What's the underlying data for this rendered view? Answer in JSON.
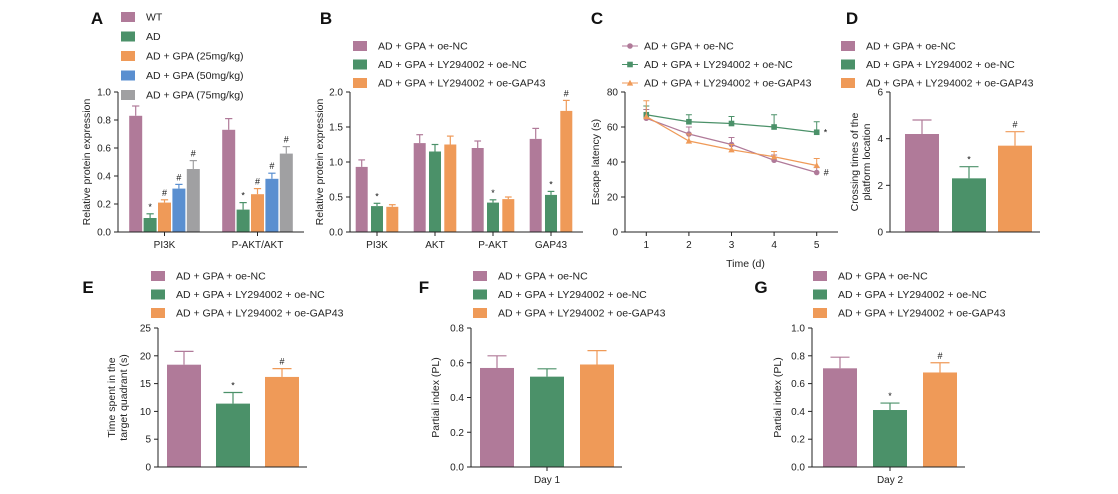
{
  "colors": {
    "wt": "#b07a99",
    "ad": "#4b9169",
    "gpa25": "#ef9a58",
    "gpa50": "#5a8fd0",
    "gpa75": "#a0a0a2",
    "nc": "#b07a99",
    "ly": "#4b9169",
    "gap": "#ef9a58",
    "axis": "#222222"
  },
  "chart_data": [
    {
      "id": "A",
      "panel_label": "A",
      "type": "bar",
      "categories": [
        "PI3K",
        "P-AKT/AKT"
      ],
      "ylabel": "Relative protein expression",
      "ylim": [
        0,
        1.0
      ],
      "yticks": [
        "0.0",
        "0.2",
        "0.4",
        "0.6",
        "0.8",
        "1.0"
      ],
      "series": [
        {
          "name": "WT",
          "color_key": "wt",
          "values": [
            0.83,
            0.73
          ],
          "errors": [
            0.07,
            0.08
          ],
          "marks": [
            "",
            ""
          ]
        },
        {
          "name": "AD",
          "color_key": "ad",
          "values": [
            0.1,
            0.16
          ],
          "errors": [
            0.03,
            0.05
          ],
          "marks": [
            "*",
            "*"
          ]
        },
        {
          "name": "AD + GPA (25mg/kg)",
          "color_key": "gpa25",
          "values": [
            0.21,
            0.27
          ],
          "errors": [
            0.02,
            0.04
          ],
          "marks": [
            "#",
            "#"
          ]
        },
        {
          "name": "AD + GPA (50mg/kg)",
          "color_key": "gpa50",
          "values": [
            0.31,
            0.38
          ],
          "errors": [
            0.03,
            0.04
          ],
          "marks": [
            "#",
            "#"
          ]
        },
        {
          "name": "AD + GPA (75mg/kg)",
          "color_key": "gpa75",
          "values": [
            0.45,
            0.56
          ],
          "errors": [
            0.06,
            0.05
          ],
          "marks": [
            "#",
            "#"
          ]
        }
      ]
    },
    {
      "id": "B",
      "panel_label": "B",
      "type": "bar",
      "categories": [
        "PI3K",
        "AKT",
        "P-AKT",
        "GAP43"
      ],
      "ylabel": "Relative protein expression",
      "ylim": [
        0,
        2.0
      ],
      "yticks": [
        "0.0",
        "0.5",
        "1.0",
        "1.5",
        "2.0"
      ],
      "series": [
        {
          "name": "AD + GPA + oe-NC",
          "color_key": "nc",
          "values": [
            0.93,
            1.27,
            1.2,
            1.33
          ],
          "errors": [
            0.1,
            0.12,
            0.1,
            0.15
          ],
          "marks": [
            "",
            "",
            "",
            ""
          ]
        },
        {
          "name": "AD + GPA + LY294002 + oe-NC",
          "color_key": "ly",
          "values": [
            0.37,
            1.15,
            0.42,
            0.53
          ],
          "errors": [
            0.04,
            0.1,
            0.04,
            0.05
          ],
          "marks": [
            "*",
            "",
            "*",
            "*"
          ]
        },
        {
          "name": "AD + GPA + LY294002 + oe-GAP43",
          "color_key": "gap",
          "values": [
            0.36,
            1.25,
            0.47,
            1.73
          ],
          "errors": [
            0.03,
            0.12,
            0.03,
            0.15
          ],
          "marks": [
            "",
            "",
            "",
            "#"
          ]
        }
      ]
    },
    {
      "id": "C",
      "panel_label": "C",
      "type": "line",
      "x": [
        1,
        2,
        3,
        4,
        5
      ],
      "xlabel": "Time (d)",
      "ylabel": "Escape latency (s)",
      "xlim": [
        0.5,
        5.5
      ],
      "ylim": [
        0,
        80
      ],
      "xticks": [
        "1",
        "2",
        "3",
        "4",
        "5"
      ],
      "yticks": [
        "0",
        "20",
        "40",
        "60",
        "80"
      ],
      "series": [
        {
          "name": "AD + GPA + oe-NC",
          "color_key": "nc",
          "marker": "circle",
          "values": [
            65,
            56,
            50,
            41,
            34
          ],
          "errors": [
            5,
            4,
            4,
            3,
            3
          ],
          "end_mark": "#"
        },
        {
          "name": "AD + GPA + LY294002 + oe-NC",
          "color_key": "ly",
          "marker": "square",
          "values": [
            67,
            63,
            62,
            60,
            57
          ],
          "errors": [
            5,
            4,
            4,
            7,
            6
          ],
          "end_mark": "*"
        },
        {
          "name": "AD + GPA + LY294002 + oe-GAP43",
          "color_key": "gap",
          "marker": "triangle",
          "values": [
            66,
            52,
            47,
            43,
            38
          ],
          "errors": [
            9,
            4,
            3,
            3,
            4
          ],
          "end_mark": ""
        }
      ]
    },
    {
      "id": "D",
      "panel_label": "D",
      "type": "bar",
      "categories": [
        ""
      ],
      "ylabel": "Crossing times of the platform location",
      "ylim": [
        0,
        6
      ],
      "yticks": [
        "0",
        "2",
        "4",
        "6"
      ],
      "series": [
        {
          "name": "AD + GPA + oe-NC",
          "color_key": "nc",
          "values": [
            4.2
          ],
          "errors": [
            0.6
          ],
          "marks": [
            ""
          ]
        },
        {
          "name": "AD + GPA + LY294002 + oe-NC",
          "color_key": "ly",
          "values": [
            2.3
          ],
          "errors": [
            0.5
          ],
          "marks": [
            "*"
          ]
        },
        {
          "name": "AD + GPA + LY294002 + oe-GAP43",
          "color_key": "gap",
          "values": [
            3.7
          ],
          "errors": [
            0.6
          ],
          "marks": [
            "#"
          ]
        }
      ]
    },
    {
      "id": "E",
      "panel_label": "E",
      "type": "bar",
      "categories": [
        ""
      ],
      "ylabel": "Time spent in the target quadrant (s)",
      "ylim": [
        0,
        25
      ],
      "yticks": [
        "0",
        "5",
        "10",
        "15",
        "20",
        "25"
      ],
      "series": [
        {
          "name": "AD + GPA + oe-NC",
          "color_key": "nc",
          "values": [
            18.4
          ],
          "errors": [
            2.4
          ],
          "marks": [
            ""
          ]
        },
        {
          "name": "AD + GPA + LY294002 + oe-NC",
          "color_key": "ly",
          "values": [
            11.4
          ],
          "errors": [
            2.0
          ],
          "marks": [
            "*"
          ]
        },
        {
          "name": "AD + GPA + LY294002 + oe-GAP43",
          "color_key": "gap",
          "values": [
            16.2
          ],
          "errors": [
            1.5
          ],
          "marks": [
            "#"
          ]
        }
      ]
    },
    {
      "id": "F",
      "panel_label": "F",
      "type": "bar",
      "categories": [
        "Day 1"
      ],
      "ylabel": "Partial index (PL)",
      "ylim": [
        0,
        0.8
      ],
      "yticks": [
        "0.0",
        "0.2",
        "0.4",
        "0.6",
        "0.8"
      ],
      "series": [
        {
          "name": "AD + GPA + oe-NC",
          "color_key": "nc",
          "values": [
            0.57
          ],
          "errors": [
            0.07
          ],
          "marks": [
            ""
          ]
        },
        {
          "name": "AD + GPA + LY294002 + oe-NC",
          "color_key": "ly",
          "values": [
            0.52
          ],
          "errors": [
            0.045
          ],
          "marks": [
            ""
          ]
        },
        {
          "name": "AD + GPA + LY294002 + oe-GAP43",
          "color_key": "gap",
          "values": [
            0.59
          ],
          "errors": [
            0.08
          ],
          "marks": [
            ""
          ]
        }
      ]
    },
    {
      "id": "G",
      "panel_label": "G",
      "type": "bar",
      "categories": [
        "Day 2"
      ],
      "ylabel": "Partial index (PL)",
      "ylim": [
        0,
        1.0
      ],
      "yticks": [
        "0.0",
        "0.2",
        "0.4",
        "0.6",
        "0.8",
        "1.0"
      ],
      "series": [
        {
          "name": "AD + GPA + oe-NC",
          "color_key": "nc",
          "values": [
            0.71
          ],
          "errors": [
            0.08
          ],
          "marks": [
            ""
          ]
        },
        {
          "name": "AD + GPA + LY294002 + oe-NC",
          "color_key": "ly",
          "values": [
            0.41
          ],
          "errors": [
            0.05
          ],
          "marks": [
            "*"
          ]
        },
        {
          "name": "AD + GPA + LY294002 + oe-GAP43",
          "color_key": "gap",
          "values": [
            0.68
          ],
          "errors": [
            0.07
          ],
          "marks": [
            "#"
          ]
        }
      ]
    }
  ]
}
